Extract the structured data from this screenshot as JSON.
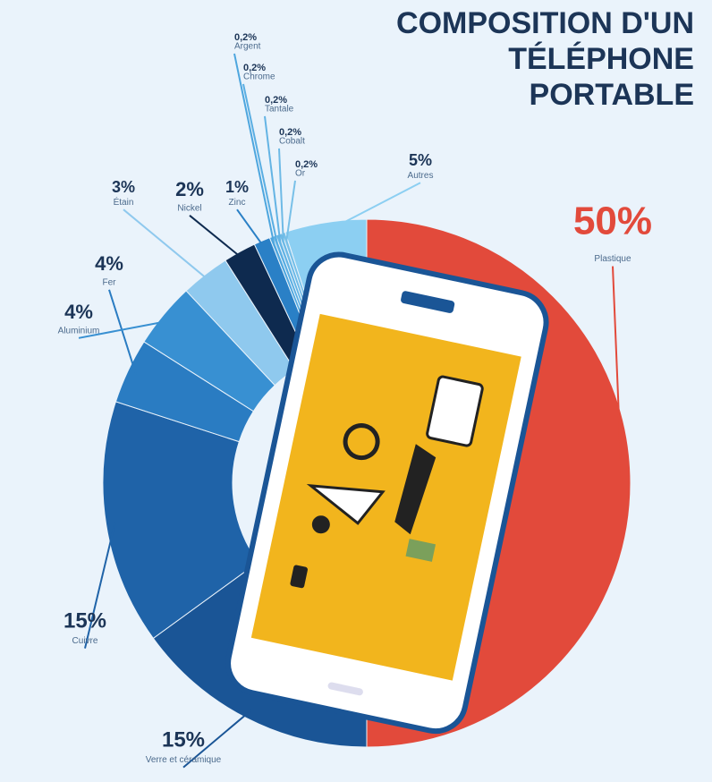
{
  "chart_data": {
    "type": "pie",
    "title": "COMPOSITION D'UN TÉLÉPHONE PORTABLE",
    "categories": [
      "Plastique",
      "Verre et céramique",
      "Cuivre",
      "Fer",
      "Aluminium",
      "Étain",
      "Nickel",
      "Zinc",
      "Argent",
      "Chrome",
      "Tantale",
      "Cobalt",
      "Or",
      "Autres"
    ],
    "values": [
      50,
      15,
      15,
      4,
      4,
      3,
      2,
      1,
      0.2,
      0.2,
      0.2,
      0.2,
      0.2,
      5
    ],
    "value_labels": [
      "50%",
      "15%",
      "15%",
      "4%",
      "4%",
      "3%",
      "2%",
      "1%",
      "0,2%",
      "0,2%",
      "0,2%",
      "0,2%",
      "0,2%",
      "5%"
    ],
    "colors": [
      "#e24a3b",
      "#1a5596",
      "#1f63a8",
      "#2a7cc2",
      "#3890d2",
      "#8fc9ee",
      "#0e2a4f",
      "#2a80c6",
      "#4ea6de",
      "#5aaee2",
      "#64b4e4",
      "#6ebae6",
      "#78c0e8",
      "#8ccff2"
    ]
  }
}
